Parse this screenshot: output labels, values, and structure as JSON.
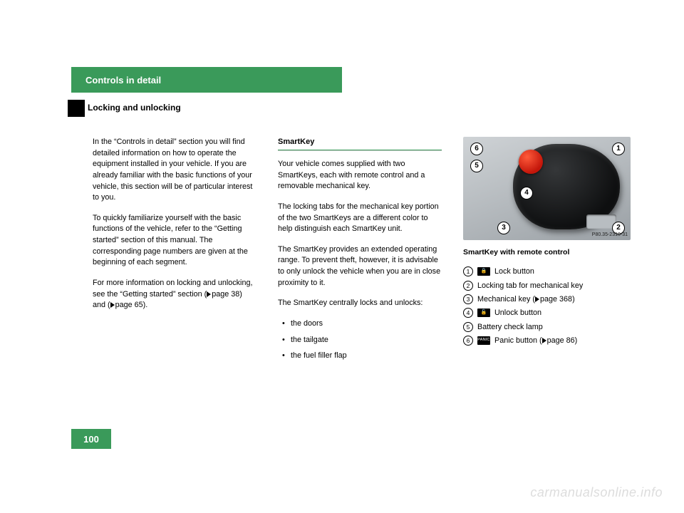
{
  "header": {
    "chapter": "Controls in detail",
    "section": "Locking and unlocking"
  },
  "col1": {
    "p1": "In the “Controls in detail” section you will find detailed information on how to oper­ate the equipment installed in your vehicle. If you are already familiar with the basic functions of your vehicle, this section will be of particular interest to you.",
    "p2": "To quickly familiarize yourself with the basic functions of the vehicle, refer to the “Getting started” section of this manual. The corresponding page numbers are given at the beginning of each segment.",
    "p3_a": "For more information on locking and unlocking, see the “Getting started” section (",
    "p3_ref1": "page 38",
    "p3_mid": ") and (",
    "p3_ref2": "page 65",
    "p3_end": ")."
  },
  "col2": {
    "title": "SmartKey",
    "p1": "Your vehicle comes supplied with two SmartKeys, each with remote control and a removable mechanical key.",
    "p2": "The locking tabs for the mechanical key portion of the two SmartKeys are a different color to help distinguish each SmartKey unit.",
    "p3": "The SmartKey provides an extended oper­ating range. To prevent theft, however, it is advisable to only unlock the vehicle when you are in close proximity to it.",
    "p4": "The SmartKey centrally locks and unlocks:",
    "b1": "the doors",
    "b2": "the tailgate",
    "b3": "the fuel filler flap"
  },
  "col3": {
    "img_tag": "P80.35-2310-31",
    "caption": "SmartKey with remote control",
    "legend": {
      "n1": "1",
      "t1_icon": "🔒",
      "t1": "Lock button",
      "n2": "2",
      "t2": "Locking tab for mechanical key",
      "n3": "3",
      "t3_a": "Mechanical key (",
      "t3_ref": "page 368",
      "t3_b": ")",
      "n4": "4",
      "t4_icon": "🔓",
      "t4": "Unlock button",
      "n5": "5",
      "t5": "Battery check lamp",
      "n6": "6",
      "t6_icon": "PANIC",
      "t6_a": "Panic button (",
      "t6_ref": "page 86",
      "t6_b": ")"
    }
  },
  "page_number": "100",
  "watermark": "carmanualsonline.info",
  "colors": {
    "green": "#3a9a5a",
    "black": "#000000"
  }
}
